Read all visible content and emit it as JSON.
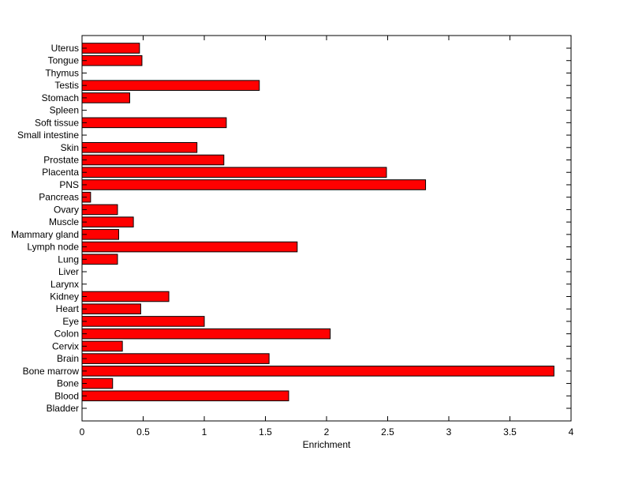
{
  "chart_data": {
    "type": "bar",
    "orientation": "horizontal",
    "title": "",
    "xlabel": "Enrichment",
    "ylabel": "",
    "xlim": [
      0,
      4
    ],
    "xticks": [
      "0",
      "0.5",
      "1",
      "1.5",
      "2",
      "2.5",
      "3",
      "3.5",
      "4"
    ],
    "grid": false,
    "legend": "none",
    "bar_color": "#ff0000",
    "edge_color": "#000000",
    "categories": [
      "Bladder",
      "Blood",
      "Bone",
      "Bone marrow",
      "Brain",
      "Cervix",
      "Colon",
      "Eye",
      "Heart",
      "Kidney",
      "Larynx",
      "Liver",
      "Lung",
      "Lymph node",
      "Mammary gland",
      "Muscle",
      "Ovary",
      "Pancreas",
      "PNS",
      "Placenta",
      "Prostate",
      "Skin",
      "Small intestine",
      "Soft tissue",
      "Spleen",
      "Stomach",
      "Testis",
      "Thymus",
      "Tongue",
      "Uterus"
    ],
    "values": [
      0,
      1.69,
      0.25,
      3.86,
      1.53,
      0.33,
      2.03,
      1.0,
      0.48,
      0.71,
      0,
      0,
      0.29,
      1.76,
      0.3,
      0.42,
      0.29,
      0.07,
      2.81,
      2.49,
      1.16,
      0.94,
      0,
      1.18,
      0,
      0.39,
      1.45,
      0,
      0.49,
      0.47
    ]
  }
}
